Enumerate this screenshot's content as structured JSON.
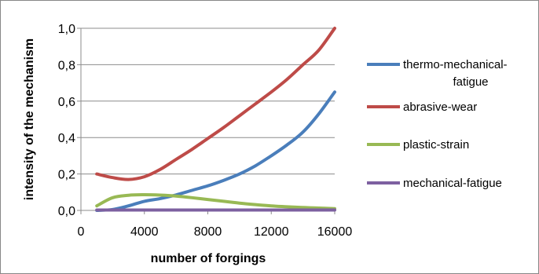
{
  "chart_data": {
    "type": "line",
    "title": "",
    "xlabel": "number of forgings",
    "ylabel": "intensity of the mechanism",
    "xlim": [
      0,
      16000
    ],
    "ylim": [
      0,
      1.0
    ],
    "x_ticks": [
      "0",
      "4000",
      "8000",
      "12000",
      "16000"
    ],
    "y_ticks": [
      "0,0",
      "0,2",
      "0,4",
      "0,6",
      "0,8",
      "1,0"
    ],
    "grid": "horizontal",
    "legend_position": "right",
    "series": [
      {
        "name": "thermo-mechanical-fatigue",
        "legend_lines": [
          "thermo-mechanical-",
          "fatigue"
        ],
        "color": "#4a7ebb",
        "x": [
          1000,
          2000,
          3000,
          4000,
          5000,
          6000,
          7000,
          8000,
          9000,
          10000,
          11000,
          12000,
          13000,
          14000,
          15000,
          16000
        ],
        "y": [
          0.0,
          0.005,
          0.025,
          0.05,
          0.065,
          0.085,
          0.11,
          0.135,
          0.165,
          0.2,
          0.245,
          0.3,
          0.36,
          0.43,
          0.53,
          0.65
        ]
      },
      {
        "name": "abrasive-wear",
        "legend_lines": [
          "abrasive-wear"
        ],
        "color": "#be4b48",
        "x": [
          1000,
          2000,
          3000,
          4000,
          5000,
          6000,
          7000,
          8000,
          9000,
          10000,
          11000,
          12000,
          13000,
          14000,
          15000,
          16000
        ],
        "y": [
          0.2,
          0.18,
          0.17,
          0.185,
          0.225,
          0.28,
          0.335,
          0.395,
          0.455,
          0.52,
          0.585,
          0.65,
          0.72,
          0.8,
          0.88,
          1.0
        ]
      },
      {
        "name": "plastic-strain",
        "legend_lines": [
          "plastic-strain"
        ],
        "color": "#98b954",
        "x": [
          1000,
          2000,
          3000,
          4000,
          5000,
          6000,
          7000,
          8000,
          9000,
          10000,
          11000,
          12000,
          13000,
          14000,
          15000,
          16000
        ],
        "y": [
          0.025,
          0.07,
          0.083,
          0.086,
          0.084,
          0.079,
          0.07,
          0.06,
          0.05,
          0.04,
          0.032,
          0.025,
          0.02,
          0.016,
          0.013,
          0.01
        ]
      },
      {
        "name": "mechanical-fatigue",
        "legend_lines": [
          "mechanical-fatigue"
        ],
        "color": "#7d60a0",
        "x": [
          1000,
          16000
        ],
        "y": [
          0.002,
          0.002
        ]
      }
    ]
  }
}
